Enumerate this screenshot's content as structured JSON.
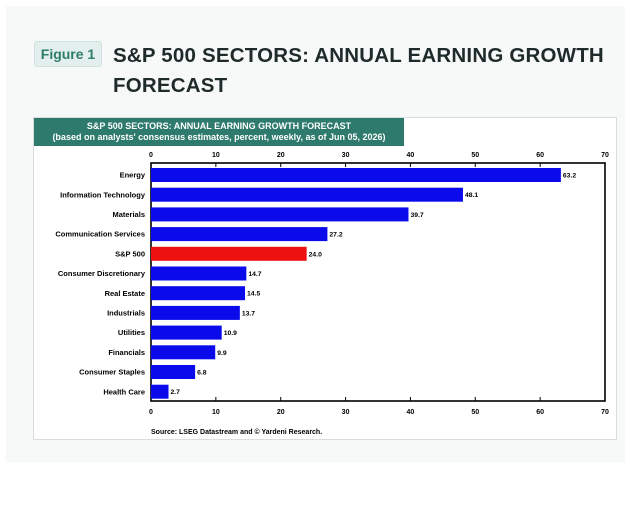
{
  "figure": {
    "label": "Figure 1",
    "title": "S&P 500 SECTORS: ANNUAL EARNING GROWTH FORECAST"
  },
  "chart_header": {
    "line1": "S&P 500 SECTORS: ANNUAL EARNING GROWTH FORECAST",
    "line2": "(based on analysts' consensus estimates, percent, weekly, as of Jun 05, 2026)"
  },
  "chart_data": {
    "type": "bar",
    "orientation": "horizontal",
    "title": "S&P 500 SECTORS: ANNUAL EARNING GROWTH FORECAST",
    "subtitle": "(based on analysts' consensus estimates, percent, weekly, as of Jun 05, 2026)",
    "categories": [
      "Energy",
      "Information Technology",
      "Materials",
      "Communication Services",
      "S&P 500",
      "Consumer Discretionary",
      "Real Estate",
      "Industrials",
      "Utilities",
      "Financials",
      "Consumer Staples",
      "Health Care"
    ],
    "values": [
      63.2,
      48.1,
      39.7,
      27.2,
      24.0,
      14.7,
      14.5,
      13.7,
      10.9,
      9.9,
      6.8,
      2.7
    ],
    "value_labels": [
      "63.2",
      "48.1",
      "39.7",
      "27.2",
      "24.0",
      "14.7",
      "14.5",
      "13.7",
      "10.9",
      "9.9",
      "6.8",
      "2.7"
    ],
    "highlight": "S&P 500",
    "xlim": [
      0,
      70
    ],
    "xticks": [
      0,
      10,
      20,
      30,
      40,
      50,
      60,
      70
    ],
    "xtick_labels": [
      "0",
      "10",
      "20",
      "30",
      "40",
      "50",
      "60",
      "70"
    ],
    "xaxis_position": "top and bottom",
    "grid": false,
    "xlabel": "",
    "ylabel": "",
    "colors": {
      "bar": "#0a0aea",
      "highlight": "#ee1111"
    },
    "source": "Source: LSEG Datastream and © Yardeni Research."
  }
}
